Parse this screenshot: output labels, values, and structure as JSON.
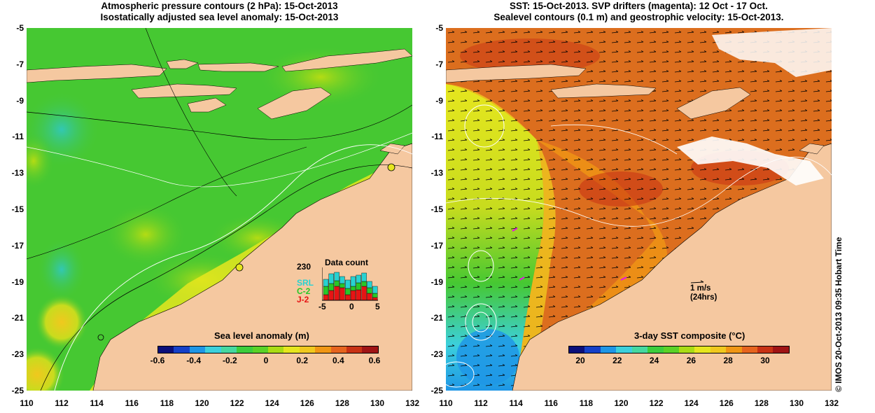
{
  "left_panel": {
    "title_line1": "Atmospheric pressure contours (2 hPa): 15-Oct-2013",
    "title_line2": "Isostatically adjusted sea level anomaly: 15-Oct-2013",
    "colorbar": {
      "label": "Sea level anomaly (m)",
      "ticks": [
        "-0.6",
        "-0.4",
        "-0.2",
        "0",
        "0.2",
        "0.4",
        "0.6"
      ],
      "colors": [
        "#0a0f7a",
        "#1540c8",
        "#1e96e6",
        "#3cd0dc",
        "#46d8a0",
        "#3ccd3c",
        "#5ad228",
        "#aadc14",
        "#e6e61e",
        "#f0c81e",
        "#f09614",
        "#e6641e",
        "#c83214",
        "#a01414"
      ]
    },
    "data_count": {
      "title": "Data count",
      "max_label": "230",
      "satellites": [
        {
          "name": "SRL",
          "color": "#28d2d2"
        },
        {
          "name": "C-2",
          "color": "#28c828"
        },
        {
          "name": "J-2",
          "color": "#e61414"
        }
      ],
      "x_ticks": [
        "-5",
        "0",
        "5"
      ]
    }
  },
  "right_panel": {
    "title_line1": "SST: 15-Oct-2013. SVP drifters (magenta): 12 Oct - 17 Oct.",
    "title_line2": "Sealevel contours (0.1 m) and geostrophic velocity: 15-Oct-2013.",
    "colorbar": {
      "label": "3-day SST composite (°C)",
      "ticks": [
        "20",
        "22",
        "24",
        "26",
        "28",
        "30"
      ],
      "colors": [
        "#0a0f7a",
        "#1540c8",
        "#1e96e6",
        "#3cd0dc",
        "#46d8a0",
        "#3ccd3c",
        "#5ad228",
        "#aadc14",
        "#e6e61e",
        "#f0c81e",
        "#f09614",
        "#e6641e",
        "#c83214",
        "#a01414"
      ]
    },
    "velocity_scale": {
      "line1": "1 m/s",
      "line2": "(24hrs)"
    }
  },
  "axes": {
    "y_ticks": [
      "-5",
      "-7",
      "-9",
      "-11",
      "-13",
      "-15",
      "-17",
      "-19",
      "-21",
      "-23",
      "-25"
    ],
    "x_ticks": [
      "110",
      "112",
      "114",
      "116",
      "118",
      "120",
      "122",
      "124",
      "126",
      "128",
      "130",
      "132"
    ]
  },
  "colors": {
    "land": "#f5c8a0",
    "ocean_ssla": "#46c832",
    "ocean_sst": "#dc6e1e"
  },
  "credit": "© IMOS 20-Oct-2013 09:35 Hobart Time"
}
